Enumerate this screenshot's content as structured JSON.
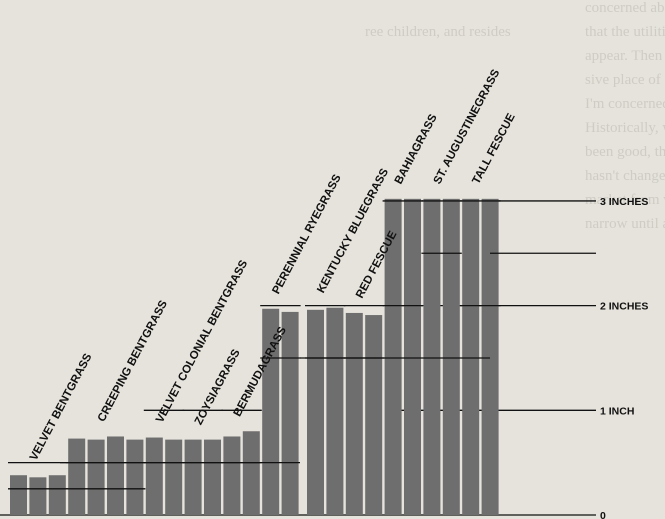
{
  "background_text": {
    "left_column": [
      "ree children, and resides"
    ],
    "middle_column": [
      "concerned about the fact",
      "that the utilities are play",
      "appear. Then what will y",
      "sive place of equipment?",
      "",
      "I'm concerned about",
      "Historically, when thing",
      "been good, there has never",
      "hasn't changed, but the",
      "market from which we",
      "narrow until all of the time"
    ]
  },
  "chart_data": {
    "type": "bar",
    "title": "",
    "xlabel": "",
    "ylabel": "",
    "unit": "inches",
    "ylim": [
      0,
      3.2
    ],
    "yticks": [
      {
        "value": 0,
        "label": "0"
      },
      {
        "value": 1,
        "label": "1 INCH"
      },
      {
        "value": 2,
        "label": "2 INCHES"
      },
      {
        "value": 3,
        "label": "3 INCHES"
      }
    ],
    "categories": [
      {
        "name": "VELVET BENTGRASS",
        "bars": [
          0.38,
          0.36,
          0.38
        ],
        "range": [
          0.25,
          0.5
        ]
      },
      {
        "name": "CREEPING BENTGRASS",
        "bars": [
          0.73,
          0.72,
          0.75,
          0.72
        ],
        "range": [
          0.25,
          0.5
        ]
      },
      {
        "name": "VELVET COLONIAL BENTGRASS",
        "bars": [
          0.74,
          0.72
        ],
        "range": [
          0.5,
          1.0
        ]
      },
      {
        "name": "ZOYSIAGRASS",
        "bars": [
          0.72,
          0.72
        ],
        "range": [
          0.5,
          1.0
        ]
      },
      {
        "name": "BERMUDAGRASS",
        "bars": [
          0.75,
          0.8
        ],
        "range": [
          0.5,
          1.0
        ]
      },
      {
        "name": "PERENNIAL RYEGRASS",
        "bars": [
          1.97,
          1.94
        ],
        "range": [
          1.5,
          2.0
        ]
      },
      {
        "name": "KENTUCKY BLUEGRASS",
        "bars": [
          1.96,
          1.98
        ],
        "range": [
          1.5,
          2.0
        ]
      },
      {
        "name": "RED FESCUE",
        "bars": [
          1.93,
          1.91
        ],
        "range": [
          1.5,
          2.0
        ]
      },
      {
        "name": "BAHIAGRASS",
        "bars": [
          3.02,
          3.02
        ],
        "range": [
          2.0,
          3.0
        ]
      },
      {
        "name": "ST. AUGUSTINEGRASS",
        "bars": [
          3.02,
          3.02
        ],
        "range": [
          2.5,
          3.0
        ]
      },
      {
        "name": "TALL FESCUE",
        "bars": [
          3.02,
          3.02
        ],
        "range": [
          2.0,
          3.0
        ]
      }
    ],
    "colors": {
      "bar": "#6e6e6e",
      "line": "#111111",
      "paper": "#e6e3dc"
    },
    "grid": false,
    "legend": "none"
  }
}
